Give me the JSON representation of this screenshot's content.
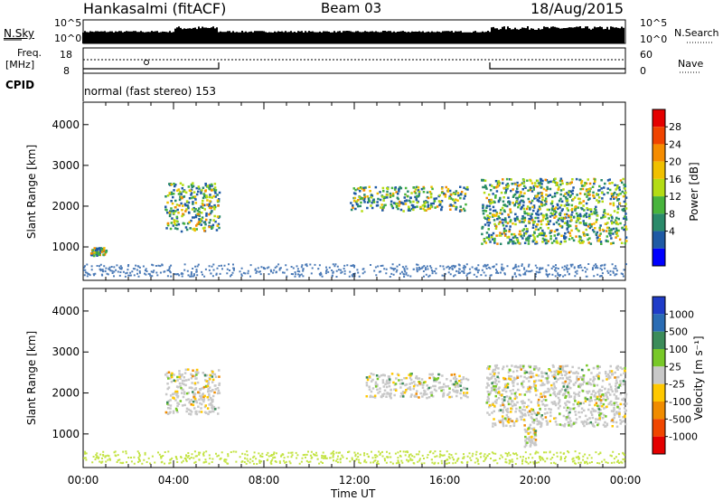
{
  "header": {
    "station": "Hankasalmi (fitACF)",
    "beam": "Beam 03",
    "date": "18/Aug/2015"
  },
  "summary": {
    "nsky_label": "N.Sky",
    "nsky_ticks": [
      "10^5",
      "10^0"
    ],
    "nsearch_label": "N.Search",
    "nsearch_ticks": [
      "10^5",
      "10^0"
    ],
    "freq_label_1": "Freq.",
    "freq_label_2": "[MHz]",
    "freq_ticks": [
      "18",
      "8"
    ],
    "nave_label": "Nave",
    "nave_ticks": [
      "60",
      "0"
    ],
    "cpid_label": "CPID",
    "cpid_text": "normal (fast stereo) 153"
  },
  "panels": {
    "power_ylabel": "Slant Range [km]",
    "velocity_ylabel": "Slant Range [km]",
    "xlabel": "Time UT"
  },
  "colorbars": {
    "power_label": "Power [dB]",
    "power_ticks": [
      "28",
      "24",
      "20",
      "16",
      "12",
      "8",
      "4"
    ],
    "velocity_label": "Velocity [m s⁻¹]",
    "velocity_ticks": [
      "1000",
      "500",
      "100",
      "25",
      "-25",
      "-100",
      "-500",
      "-1000"
    ],
    "power_colors": [
      "#e40000",
      "#f04400",
      "#f58c00",
      "#f0c000",
      "#b4dc14",
      "#48b43c",
      "#2a8a6a",
      "#1f5aa5",
      "#0000ff"
    ],
    "velocity_colors": [
      "#1f3cc8",
      "#2a6cb4",
      "#3c8c5a",
      "#78c828",
      "#c8c8c8",
      "#ffc800",
      "#f08c00",
      "#f04600",
      "#e40000"
    ]
  },
  "chart_data": {
    "type": "heatmap",
    "x": [
      "00:00",
      "04:00",
      "08:00",
      "12:00",
      "16:00",
      "20:00",
      "00:00"
    ],
    "xlim_hours": [
      0,
      24
    ],
    "ylim_km": [
      180,
      4550
    ],
    "yticks_km": [
      1000,
      2000,
      3000,
      4000
    ],
    "power_echo_regions": [
      {
        "start_hour": 3.6,
        "end_hour": 6.0,
        "range_km": [
          1400,
          2600
        ],
        "power_db": 12
      },
      {
        "start_hour": 11.8,
        "end_hour": 17.0,
        "range_km": [
          1900,
          2500
        ],
        "power_db": 12
      },
      {
        "start_hour": 17.6,
        "end_hour": 24.0,
        "range_km": [
          1100,
          2700
        ],
        "power_db": 14
      },
      {
        "start_hour": 0.3,
        "end_hour": 1.0,
        "range_km": [
          800,
          1000
        ],
        "power_db": 8
      }
    ],
    "velocity_echo_regions": [
      {
        "start_hour": 3.6,
        "end_hour": 6.0,
        "range_km": [
          1500,
          2600
        ],
        "velocity_ms": 0
      },
      {
        "start_hour": 12.5,
        "end_hour": 17.0,
        "range_km": [
          1900,
          2500
        ],
        "velocity_ms": 0
      },
      {
        "start_hour": 17.8,
        "end_hour": 24.0,
        "range_km": [
          1200,
          2700
        ],
        "velocity_ms": 0
      },
      {
        "start_hour": 19.5,
        "end_hour": 20.0,
        "range_km": [
          700,
          1200
        ],
        "velocity_ms": -500
      }
    ]
  }
}
